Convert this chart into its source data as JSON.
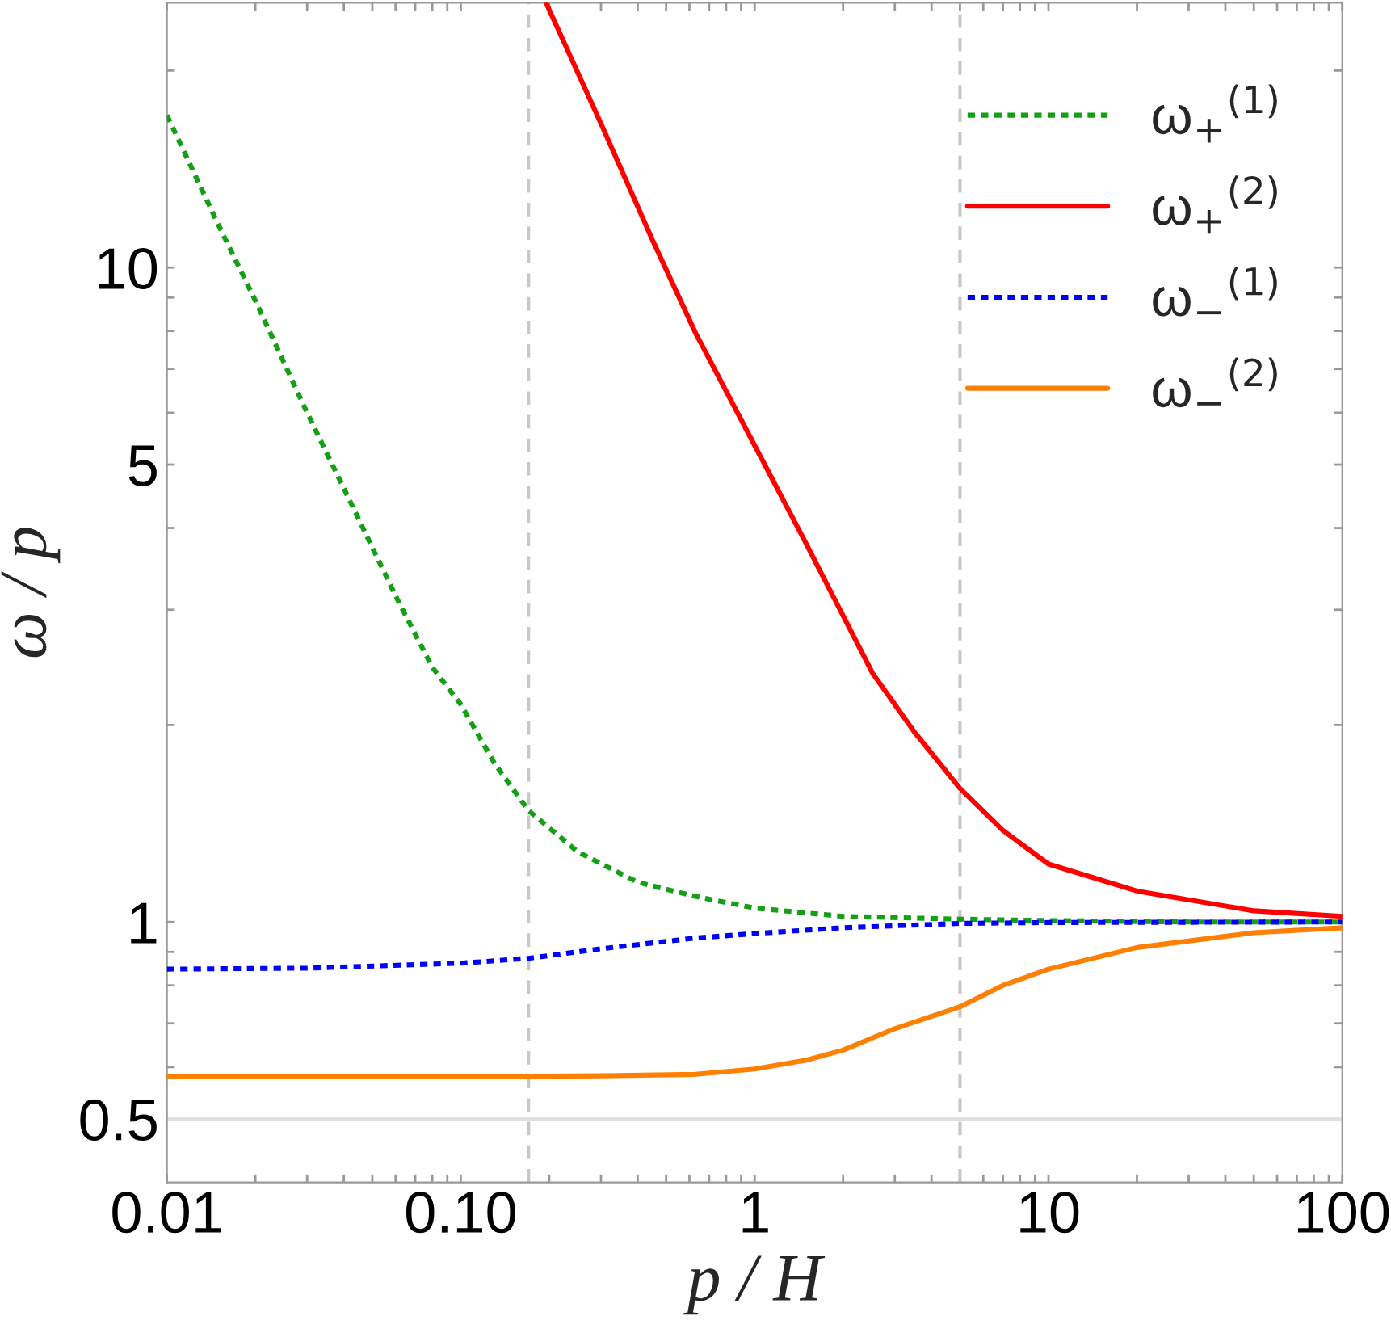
{
  "chart_data": {
    "type": "line",
    "xlabel": "p / H",
    "ylabel": "ω / p",
    "log": "xy",
    "xlim": [
      0.01,
      100
    ],
    "ylim": [
      0.4,
      25.4
    ],
    "xticks": [
      {
        "value": 0.01,
        "label": "0.01"
      },
      {
        "value": 0.02,
        "label": null
      },
      {
        "value": 0.03,
        "label": null
      },
      {
        "value": 0.04,
        "label": null
      },
      {
        "value": 0.05,
        "label": null
      },
      {
        "value": 0.06,
        "label": null
      },
      {
        "value": 0.07,
        "label": null
      },
      {
        "value": 0.08,
        "label": null
      },
      {
        "value": 0.09,
        "label": null
      },
      {
        "value": 0.1,
        "label": "0.10"
      },
      {
        "value": 0.2,
        "label": null
      },
      {
        "value": 0.3,
        "label": null
      },
      {
        "value": 0.4,
        "label": null
      },
      {
        "value": 0.5,
        "label": null
      },
      {
        "value": 0.6,
        "label": null
      },
      {
        "value": 0.7,
        "label": null
      },
      {
        "value": 0.8,
        "label": null
      },
      {
        "value": 0.9,
        "label": null
      },
      1,
      {
        "value": 2,
        "label": null
      },
      {
        "value": 3,
        "label": null
      },
      {
        "value": 4,
        "label": null
      },
      {
        "value": 5,
        "label": null
      },
      {
        "value": 6,
        "label": null
      },
      {
        "value": 7,
        "label": null
      },
      {
        "value": 8,
        "label": null
      },
      {
        "value": 9,
        "label": null
      },
      10,
      {
        "value": 20,
        "label": null
      },
      {
        "value": 30,
        "label": null
      },
      {
        "value": 40,
        "label": null
      },
      {
        "value": 50,
        "label": null
      },
      {
        "value": 60,
        "label": null
      },
      {
        "value": 70,
        "label": null
      },
      {
        "value": 80,
        "label": null
      },
      {
        "value": 90,
        "label": null
      },
      100
    ],
    "yticks": [
      0.5,
      {
        "value": 0.6,
        "label": null
      },
      {
        "value": 0.7,
        "label": null
      },
      {
        "value": 0.8,
        "label": null
      },
      {
        "value": 0.9,
        "label": null
      },
      1,
      {
        "value": 2,
        "label": null
      },
      {
        "value": 3,
        "label": null
      },
      {
        "value": 4,
        "label": null
      },
      5,
      {
        "value": 6,
        "label": null
      },
      {
        "value": 7,
        "label": null
      },
      {
        "value": 8,
        "label": null
      },
      {
        "value": 9,
        "label": null
      },
      10,
      {
        "value": 20,
        "label": null
      }
    ],
    "grid": false,
    "legend": "top right",
    "ref_lines": [
      {
        "axis": "x",
        "value": 0.17,
        "color": "#c8c8c8",
        "line_style": "dashed"
      },
      {
        "axis": "x",
        "value": 5,
        "color": "#c8c8c8",
        "line_style": "dashed"
      },
      {
        "axis": "y",
        "value": 0.5,
        "color": "#e0e0e0",
        "line_style": "solid"
      }
    ],
    "series": [
      {
        "name": "ω$_{+}$$^{(1)}$",
        "color": "#14a014",
        "line_style": "dotted",
        "x": [
          0.01,
          0.015,
          0.02,
          0.03,
          0.04,
          0.06,
          0.08,
          0.1,
          0.13,
          0.17,
          0.25,
          0.4,
          0.63,
          1,
          2,
          5,
          10,
          30,
          100
        ],
        "values": [
          17.1,
          11.6,
          8.9,
          6.0,
          4.6,
          3.15,
          2.45,
          2.15,
          1.75,
          1.48,
          1.28,
          1.15,
          1.094,
          1.05,
          1.02,
          1.01,
          1.005,
          1.0,
          1.0
        ]
      },
      {
        "name": "ω$_{+}$$^{(2)}$",
        "color": "#ff0000",
        "line_style": "solid",
        "x": [
          0.195,
          0.3,
          0.45,
          0.63,
          1,
          1.5,
          2.52,
          3.5,
          5,
          7,
          10,
          20,
          50,
          100
        ],
        "values": [
          25.4,
          16.6,
          11.0,
          7.94,
          5.35,
          3.78,
          2.4,
          1.95,
          1.6,
          1.38,
          1.226,
          1.115,
          1.04,
          1.02
        ]
      },
      {
        "name": "ω$_{−}$$^{(1)}$",
        "color": "#0000ff",
        "line_style": "dotted",
        "x": [
          0.01,
          0.03,
          0.1,
          0.17,
          0.3,
          0.63,
          1,
          2,
          5,
          10,
          100
        ],
        "values": [
          0.847,
          0.85,
          0.865,
          0.88,
          0.91,
          0.945,
          0.96,
          0.98,
          0.995,
          0.998,
          1.0
        ]
      },
      {
        "name": "ω$_{−}$$^{(2)}$",
        "color": "#ff8000",
        "line_style": "solid",
        "x": [
          0.01,
          0.1,
          0.3,
          0.63,
          1,
          1.5,
          2,
          3,
          5,
          7,
          10,
          20,
          50,
          100
        ],
        "values": [
          0.58,
          0.58,
          0.582,
          0.585,
          0.596,
          0.615,
          0.637,
          0.687,
          0.742,
          0.8,
          0.847,
          0.914,
          0.963,
          0.98
        ]
      }
    ]
  }
}
